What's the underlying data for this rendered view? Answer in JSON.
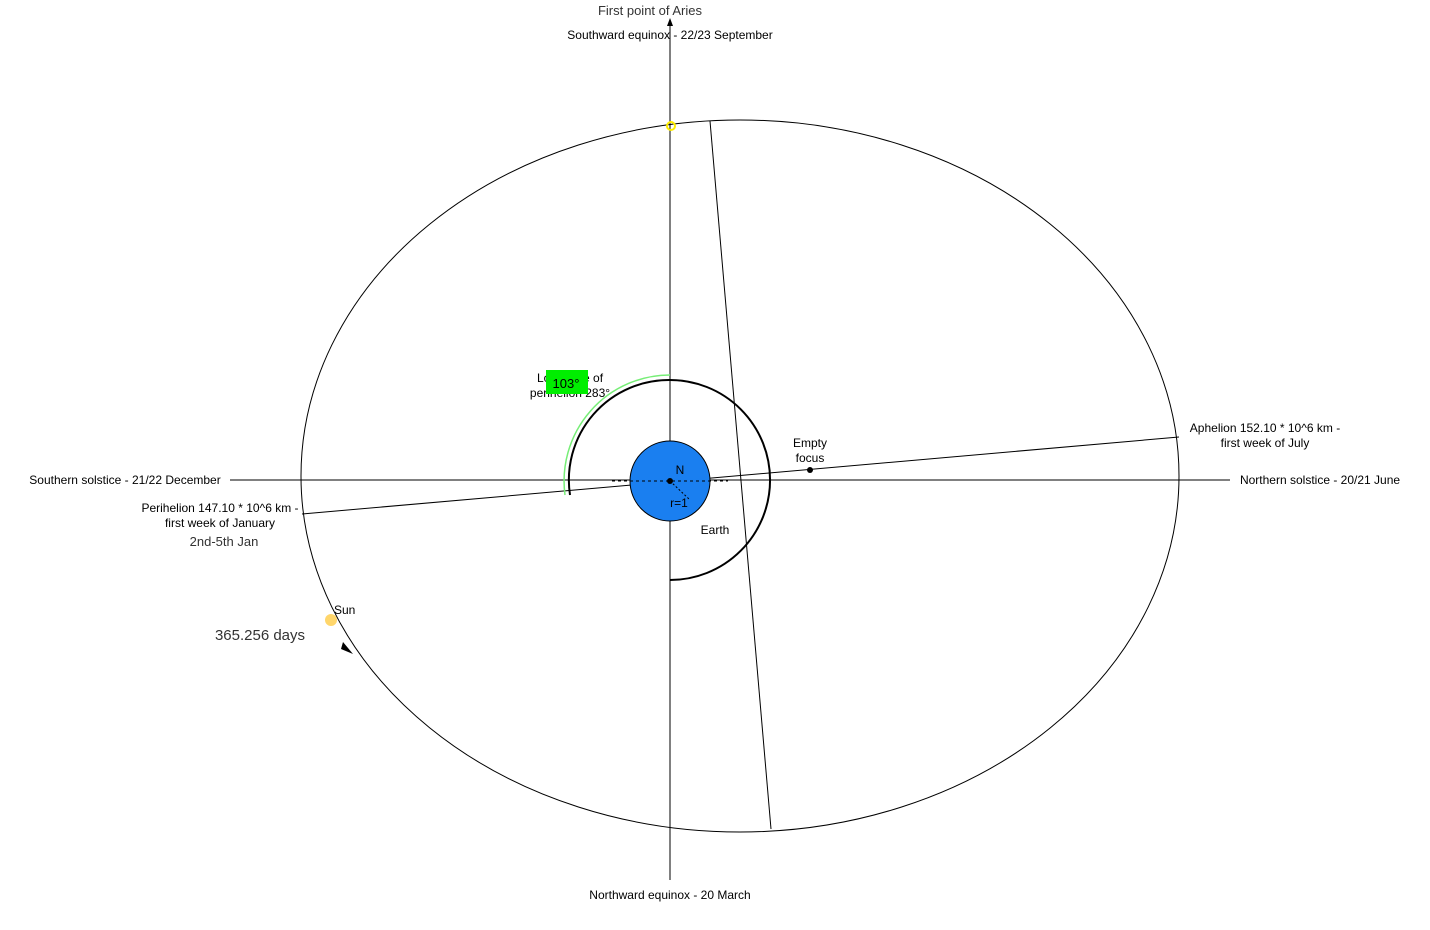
{
  "colors": {
    "background": "#ffffff",
    "line": "#000000",
    "earth": "#1a7ff0",
    "sun": "#ffd66b",
    "equinox_point": "#ffee00",
    "longitude_arc": "#77ee77",
    "badge": "#00ee00"
  },
  "labels": {
    "first_point_aries": "First point of Aries",
    "southward_equinox": "Southward equinox - 22/23 September",
    "northward_equinox": "Northward equinox - 20 March",
    "southern_solstice": "Southern solstice - 21/22 December",
    "northern_solstice": "Northern solstice - 20/21 June",
    "perihelion_line1": "Perihelion 147.10 * 10^6 km -",
    "perihelion_line2": "first week of January",
    "perihelion_date": "2nd-5th Jan",
    "aphelion_line1": "Aphelion 152.10 * 10^6 km -",
    "aphelion_line2": "first week of July",
    "empty_focus_line1": "Empty",
    "empty_focus_line2": "focus",
    "sun": "Sun",
    "orbital_period": "365.256 days",
    "earth": "Earth",
    "north": "N",
    "radius": "r=1",
    "longitude_line1": "Longitude of",
    "longitude_line2": "perihelion 283°",
    "angle_badge": "103°"
  },
  "icons": {
    "earth": "earth-disc-icon",
    "sun": "sun-dot-icon",
    "arrow": "direction-arrow-icon"
  }
}
